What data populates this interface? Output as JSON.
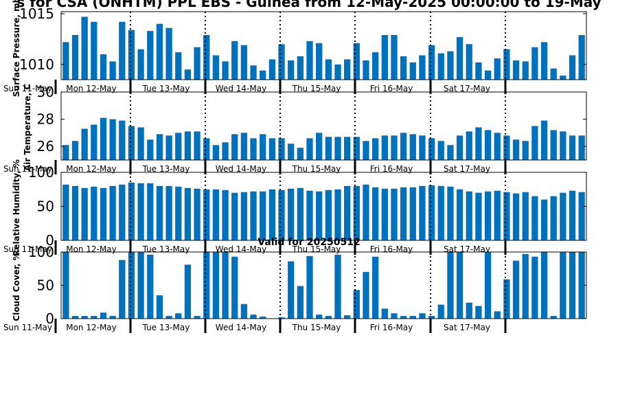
{
  "title": "s for CSA (ONHTM) PPL EBS  - Guinea from 12-May-2025 00:00:00 to 19-May",
  "subtitle": "Valid for 20250512",
  "colors": {
    "bar": "#0072BD",
    "axis": "#000000",
    "background": "#ffffff"
  },
  "chart_data": [
    {
      "type": "bar",
      "ylabel": "Surface Pressure, mb",
      "ylim": [
        1008.5,
        1015.2
      ],
      "yticks": [
        1010,
        1015
      ],
      "first_day_label": "Sun 11-May",
      "day_labels": [
        "Mon 12-May",
        "Tue 13-May",
        "Wed 14-May",
        "Thu 15-May",
        "Fri 16-May",
        "Sat 17-May"
      ],
      "values": [
        1012.2,
        1012.9,
        1014.7,
        1014.2,
        1011.0,
        1010.3,
        1014.2,
        1013.4,
        1011.5,
        1013.3,
        1014.0,
        1013.6,
        1011.2,
        1009.5,
        1011.7,
        1012.9,
        1010.9,
        1010.3,
        1012.3,
        1011.9,
        1009.9,
        1009.4,
        1010.5,
        1012.0,
        1010.4,
        1010.8,
        1012.3,
        1012.1,
        1010.5,
        1010.0,
        1010.5,
        1012.1,
        1010.4,
        1011.2,
        1012.9,
        1012.9,
        1010.8,
        1010.2,
        1010.9,
        1011.9,
        1011.1,
        1011.3,
        1012.7,
        1012.0,
        1010.2,
        1009.4,
        1010.6,
        1011.5,
        1010.4,
        1010.3,
        1011.7,
        1012.2,
        1009.6,
        1008.9,
        1010.9,
        1012.9
      ]
    },
    {
      "type": "bar",
      "ylabel": "Air Temperature, C",
      "ylim": [
        25.0,
        30.0
      ],
      "yticks": [
        26,
        28,
        30
      ],
      "first_day_label": "Sun 11-May",
      "day_labels": [
        "Mon 12-May",
        "Tue 13-May",
        "Wed 14-May",
        "Thu 15-May",
        "Fri 16-May",
        "Sat 17-May"
      ],
      "values": [
        26.1,
        26.4,
        27.3,
        27.6,
        28.1,
        28.0,
        27.9,
        27.5,
        27.4,
        26.5,
        26.9,
        26.8,
        27.0,
        27.1,
        27.1,
        26.6,
        26.1,
        26.3,
        26.9,
        27.0,
        26.6,
        26.9,
        26.6,
        26.6,
        26.2,
        25.9,
        26.6,
        27.0,
        26.7,
        26.7,
        26.7,
        26.7,
        26.4,
        26.6,
        26.8,
        26.8,
        27.0,
        26.9,
        26.8,
        26.6,
        26.4,
        26.1,
        26.8,
        27.1,
        27.4,
        27.2,
        27.0,
        26.8,
        26.5,
        26.4,
        27.5,
        27.9,
        27.2,
        27.1,
        26.8,
        26.8
      ]
    },
    {
      "type": "bar",
      "ylabel": "Relative Humidity, %",
      "ylim": [
        0,
        100
      ],
      "yticks": [
        0,
        50,
        100
      ],
      "first_day_label": "Sun 11-May",
      "day_labels": [
        "Mon 12-May",
        "Tue 13-May",
        "Wed 14-May",
        "Thu 15-May",
        "Fri 16-May",
        "Sat 17-May"
      ],
      "values": [
        82,
        80,
        77,
        79,
        77,
        80,
        82,
        85,
        84,
        84,
        80,
        80,
        79,
        77,
        76,
        75,
        75,
        74,
        70,
        71,
        72,
        72,
        75,
        74,
        76,
        77,
        73,
        72,
        74,
        75,
        80,
        80,
        82,
        78,
        76,
        76,
        78,
        78,
        80,
        81,
        80,
        79,
        75,
        72,
        70,
        72,
        73,
        71,
        69,
        71,
        65,
        60,
        65,
        70,
        73,
        71
      ]
    },
    {
      "type": "bar",
      "ylabel": "Cloud Cover, %",
      "ylim": [
        0,
        100
      ],
      "yticks": [
        0,
        50,
        100
      ],
      "first_day_label": "Sun 11-May",
      "day_labels": [
        "Mon 12-May",
        "Tue 13-May",
        "Wed 14-May",
        "Thu 15-May",
        "Fri 16-May",
        "Sat 17-May"
      ],
      "values": [
        100,
        4,
        4,
        4,
        9,
        4,
        88,
        100,
        100,
        96,
        35,
        4,
        8,
        81,
        4,
        100,
        100,
        100,
        93,
        22,
        6,
        3,
        0,
        2,
        86,
        49,
        94,
        6,
        4,
        96,
        5,
        43,
        70,
        93,
        15,
        8,
        4,
        4,
        8,
        4,
        21,
        100,
        100,
        24,
        19,
        100,
        11,
        59,
        87,
        97,
        93,
        100,
        4,
        100,
        100,
        100
      ]
    }
  ]
}
